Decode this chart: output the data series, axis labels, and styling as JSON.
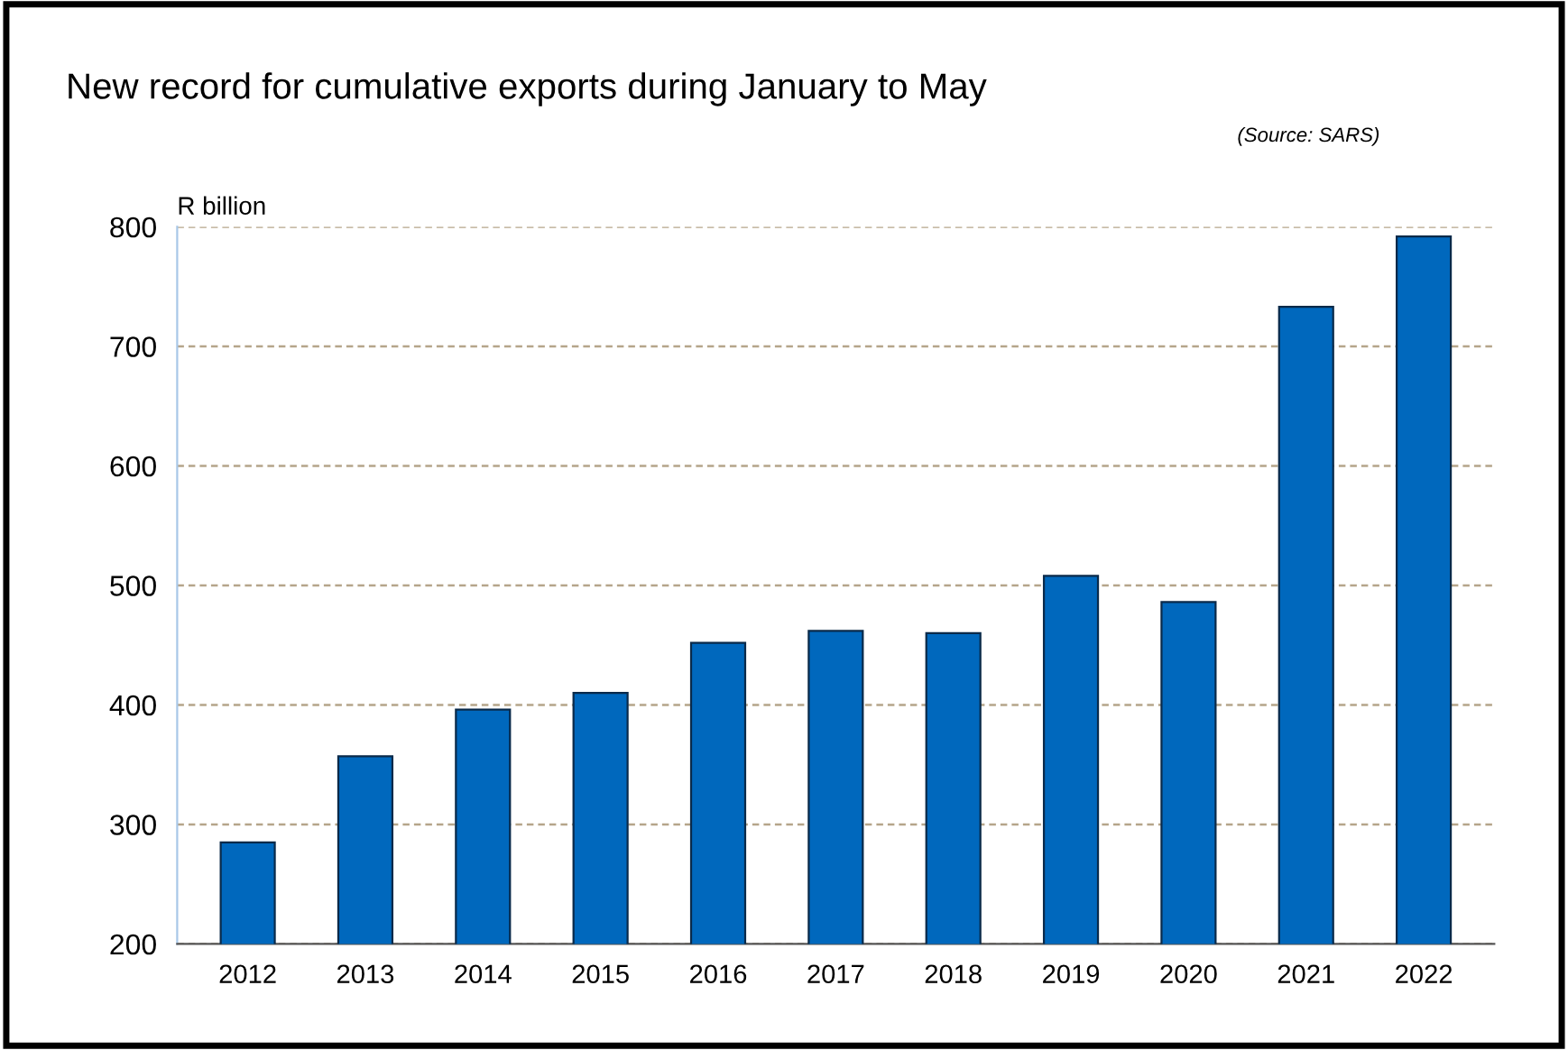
{
  "chart_data": {
    "type": "bar",
    "title": "New record for cumulative exports during January to May",
    "ylabel": "R billion",
    "annotations": [
      "(Source: SARS)"
    ],
    "categories": [
      "2012",
      "2013",
      "2014",
      "2015",
      "2016",
      "2017",
      "2018",
      "2019",
      "2020",
      "2021",
      "2022"
    ],
    "values": [
      285,
      357,
      396,
      410,
      452,
      462,
      460,
      508,
      486,
      733,
      792
    ],
    "color": "#0068bd",
    "ylim": [
      200,
      800
    ],
    "yticks": [
      200,
      300,
      400,
      500,
      600,
      700,
      800
    ],
    "grid": "y"
  }
}
